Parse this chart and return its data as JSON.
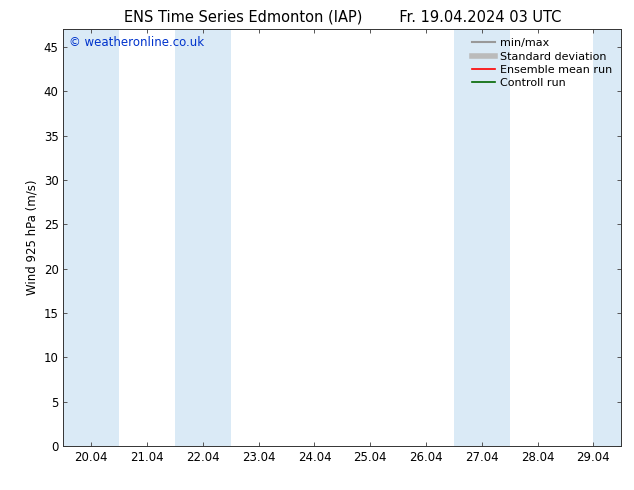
{
  "title_left": "ENS Time Series Edmonton (IAP)",
  "title_right": "Fr. 19.04.2024 03 UTC",
  "ylabel": "Wind 925 hPa (m/s)",
  "watermark": "© weatheronline.co.uk",
  "x_tick_labels": [
    "20.04",
    "21.04",
    "22.04",
    "23.04",
    "24.04",
    "25.04",
    "26.04",
    "27.04",
    "28.04",
    "29.04"
  ],
  "x_tick_positions": [
    0,
    1,
    2,
    3,
    4,
    5,
    6,
    7,
    8,
    9
  ],
  "ylim": [
    0,
    47
  ],
  "xlim": [
    -0.5,
    9.5
  ],
  "yticks": [
    0,
    5,
    10,
    15,
    20,
    25,
    30,
    35,
    40,
    45
  ],
  "shaded_bands": [
    {
      "x_start": -0.5,
      "x_end": 0.5,
      "color": "#daeaf6"
    },
    {
      "x_start": 1.5,
      "x_end": 2.5,
      "color": "#daeaf6"
    },
    {
      "x_start": 6.5,
      "x_end": 7.5,
      "color": "#daeaf6"
    },
    {
      "x_start": 9.0,
      "x_end": 9.5,
      "color": "#daeaf6"
    }
  ],
  "legend_entries": [
    {
      "label": "min/max",
      "color": "#999999",
      "linestyle": "-",
      "linewidth": 1.5
    },
    {
      "label": "Standard deviation",
      "color": "#bbbbbb",
      "linestyle": "-",
      "linewidth": 4
    },
    {
      "label": "Ensemble mean run",
      "color": "#ff0000",
      "linestyle": "-",
      "linewidth": 1.2
    },
    {
      "label": "Controll run",
      "color": "#006600",
      "linestyle": "-",
      "linewidth": 1.2
    }
  ],
  "background_color": "#ffffff",
  "plot_bg_color": "#ffffff",
  "title_fontsize": 10.5,
  "axis_fontsize": 8.5,
  "tick_fontsize": 8.5,
  "watermark_color": "#0033cc",
  "watermark_fontsize": 8.5,
  "legend_fontsize": 8
}
